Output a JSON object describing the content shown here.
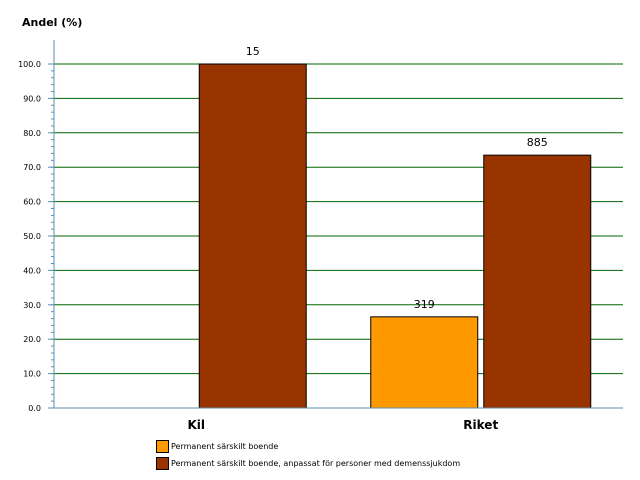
{
  "chart_data": {
    "type": "bar",
    "ylabel": "Andel (%)",
    "xlabel": "",
    "ylim": [
      0,
      100
    ],
    "yticks": [
      "0.0",
      "10.0",
      "20.0",
      "30.0",
      "40.0",
      "50.0",
      "60.0",
      "70.0",
      "80.0",
      "90.0",
      "100.0"
    ],
    "grid": true,
    "legend_position": "bottom",
    "categories": [
      "Kil",
      "Riket"
    ],
    "series": [
      {
        "name": "Permanent särskilt boende",
        "color": "#ff9900",
        "values": [
          null,
          26.5
        ],
        "labels": [
          "",
          "319"
        ]
      },
      {
        "name": "Permanent särskilt boende, anpassat för personer med demenssjukdom",
        "color": "#993300",
        "values": [
          100,
          73.5
        ],
        "labels": [
          "15",
          "885"
        ]
      }
    ],
    "gridline_color": "#006600"
  }
}
